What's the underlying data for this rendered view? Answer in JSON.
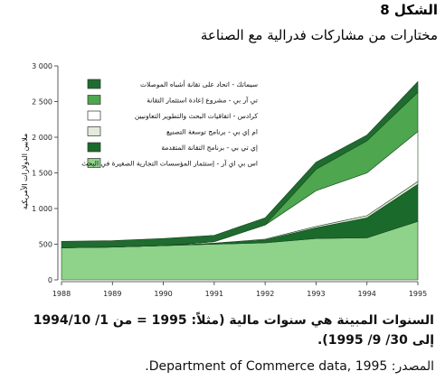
{
  "chart_data": {
    "type": "stacked-area",
    "title": "الشكل 8",
    "subtitle": "مختارات من مشاركات فدرالية مع الصناعة",
    "y_label": "ملايين الدولارات الأمريكية",
    "x": [
      1988,
      1989,
      1990,
      1991,
      1992,
      1993,
      1994,
      1995
    ],
    "xlim": [
      1988,
      1995
    ],
    "xticks": [
      1988,
      1989,
      1990,
      1991,
      1992,
      1993,
      1994,
      1995
    ],
    "ylim": [
      0,
      3000
    ],
    "yticks": [
      {
        "value": 0,
        "label": "0"
      },
      {
        "value": 500,
        "label": "500"
      },
      {
        "value": 1000,
        "label": "1 000"
      },
      {
        "value": 1500,
        "label": "1 500"
      },
      {
        "value": 2000,
        "label": "2 000"
      },
      {
        "value": 2500,
        "label": "2 500"
      },
      {
        "value": 3000,
        "label": "3 000"
      }
    ],
    "series": [
      {
        "name": "سيماتك - اتحاد على تقانة أشباه الموصلات",
        "color": "#1f6b30",
        "values": [
          90,
          90,
          100,
          90,
          100,
          100,
          80,
          150
        ]
      },
      {
        "name": "تي آر بي - مشروع إعادة استثمار التقانة",
        "color": "#4ea64f",
        "values": [
          0,
          0,
          0,
          0,
          0,
          300,
          450,
          550
        ]
      },
      {
        "name": "كرادس - اتفاقيات البحث والتطوير التعاونيين",
        "color": "#ffffff",
        "values": [
          0,
          0,
          0,
          20,
          200,
          500,
          600,
          700
        ]
      },
      {
        "name": "ام إي بي - برنامج توسعة التصنيع",
        "color": "#e4ebdc",
        "values": [
          0,
          0,
          0,
          5,
          10,
          20,
          30,
          40
        ]
      },
      {
        "name": "إي تي بي - برنامج التقانة المتقدمة",
        "color": "#1a6a2c",
        "values": [
          0,
          0,
          0,
          10,
          40,
          150,
          280,
          520
        ]
      },
      {
        "name": "اس بي اي آر - إستثمار المؤسسات التجارية الصغيرة في البحث",
        "color": "#8fd28a",
        "values": [
          450,
          460,
          480,
          500,
          520,
          580,
          590,
          820
        ]
      }
    ],
    "note": "السنوات المبينة هي سنوات مالية (مثلاً: 1995 = من 1/ 1994/10 إلى 30/ 9/ 1995).",
    "source": "المصدر: Department of Commerce data, 1995."
  }
}
